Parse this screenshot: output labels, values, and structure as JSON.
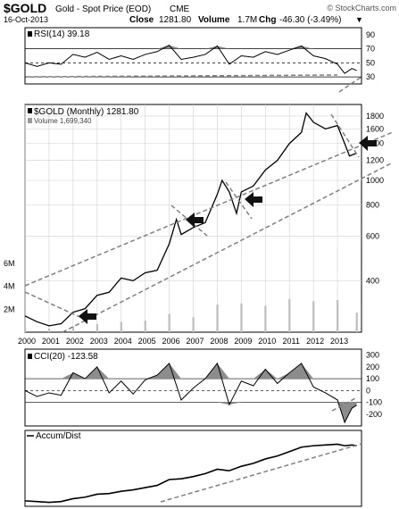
{
  "header": {
    "symbol": "$GOLD",
    "name": "Gold - Spot Price (EOD)",
    "exchange": "CME",
    "date": "16-Oct-2013",
    "close_label": "Close",
    "close_value": "1281.80",
    "volume_label": "Volume",
    "volume_value": "1.7M",
    "chg_label": "Chg",
    "chg_value": "-46.30 (-3.49%)",
    "chg_arrow": "▼",
    "watermark": "© StockCharts.com"
  },
  "colors": {
    "price": "#000000",
    "fill_gray": "#8c8c8c",
    "volume_bar": "#bdbdbd",
    "trend_dash": "#808080",
    "grid": "#d0d0d0",
    "arrow": "#111111"
  },
  "chart_data": [
    {
      "type": "line",
      "panel": "rsi",
      "legend": "RSI(14) 39.18",
      "y_ticks": [
        30,
        50,
        70,
        90
      ],
      "ylim": [
        20,
        100
      ],
      "reference_lines": [
        30,
        50,
        70
      ],
      "fill_above": 70,
      "x": [
        2000.0,
        2000.5,
        2001.0,
        2001.5,
        2002.0,
        2002.5,
        2003.0,
        2003.5,
        2004.0,
        2004.5,
        2005.0,
        2005.5,
        2006.0,
        2006.5,
        2007.0,
        2007.5,
        2008.0,
        2008.5,
        2009.0,
        2009.5,
        2010.0,
        2010.5,
        2011.0,
        2011.5,
        2012.0,
        2012.5,
        2013.0,
        2013.3,
        2013.6,
        2013.8
      ],
      "values": [
        50,
        45,
        50,
        48,
        62,
        58,
        65,
        55,
        60,
        55,
        62,
        66,
        75,
        55,
        58,
        62,
        74,
        48,
        60,
        58,
        66,
        62,
        68,
        74,
        60,
        56,
        48,
        35,
        42,
        39
      ]
    },
    {
      "type": "line",
      "panel": "price",
      "legend": "$GOLD (Monthly) 1281.80",
      "volume_legend": "Volume 1,699,340",
      "scale": "log",
      "y_ticks": [
        400,
        600,
        800,
        1000,
        1200,
        1400,
        1600,
        1800
      ],
      "ylim": [
        250,
        2000
      ],
      "x_ticks": [
        "2000",
        "2001",
        "2002",
        "2003",
        "2004",
        "2005",
        "2006",
        "2007",
        "2008",
        "2009",
        "2010",
        "2011",
        "2012",
        "2013"
      ],
      "volume_ticks": [
        "2M",
        "4M",
        "6M"
      ],
      "volume_ylim": [
        0,
        7000000
      ],
      "x": [
        2000.0,
        2000.5,
        2001.0,
        2001.5,
        2002.0,
        2002.5,
        2003.0,
        2003.5,
        2004.0,
        2004.5,
        2005.0,
        2005.5,
        2006.0,
        2006.3,
        2006.5,
        2007.0,
        2007.5,
        2008.0,
        2008.2,
        2008.5,
        2008.8,
        2009.0,
        2009.5,
        2010.0,
        2010.5,
        2011.0,
        2011.5,
        2011.7,
        2012.0,
        2012.5,
        2013.0,
        2013.3,
        2013.5,
        2013.8
      ],
      "values": [
        290,
        275,
        265,
        270,
        300,
        310,
        350,
        360,
        410,
        400,
        430,
        440,
        560,
        700,
        610,
        650,
        680,
        880,
        1000,
        900,
        740,
        900,
        950,
        1100,
        1200,
        1400,
        1550,
        1850,
        1700,
        1600,
        1650,
        1400,
        1250,
        1282
      ],
      "volume_x": [
        2000.0,
        2001.0,
        2002.0,
        2003.0,
        2004.0,
        2005.0,
        2006.0,
        2007.0,
        2008.0,
        2009.0,
        2010.0,
        2011.0,
        2012.0,
        2013.0,
        2013.8
      ],
      "volume_values": [
        400000,
        300000,
        500000,
        700000,
        900000,
        1000000,
        1600000,
        1300000,
        2400000,
        2500000,
        2300000,
        2900000,
        2700000,
        2800000,
        1700000
      ]
    },
    {
      "type": "line",
      "panel": "cci",
      "legend": "CCI(20) -123.58",
      "y_ticks": [
        -200,
        -100,
        0,
        100,
        200,
        300
      ],
      "ylim": [
        -300,
        350
      ],
      "reference_lines": [
        -100,
        0,
        100
      ],
      "x": [
        2000.0,
        2000.5,
        2001.0,
        2001.5,
        2002.0,
        2002.5,
        2003.0,
        2003.5,
        2004.0,
        2004.5,
        2005.0,
        2005.5,
        2006.0,
        2006.5,
        2007.0,
        2007.5,
        2008.0,
        2008.5,
        2009.0,
        2009.5,
        2010.0,
        2010.5,
        2011.0,
        2011.5,
        2012.0,
        2012.5,
        2013.0,
        2013.3,
        2013.6,
        2013.8
      ],
      "values": [
        0,
        -50,
        -20,
        -40,
        150,
        100,
        200,
        -20,
        80,
        -30,
        90,
        130,
        230,
        -80,
        20,
        100,
        230,
        -120,
        80,
        40,
        180,
        60,
        150,
        230,
        30,
        -20,
        -80,
        -270,
        -150,
        -124
      ]
    },
    {
      "type": "line",
      "panel": "accum_dist",
      "legend": "Accum/Dist",
      "x": [
        2000.0,
        2000.5,
        2001.0,
        2001.5,
        2002.0,
        2002.5,
        2003.0,
        2003.5,
        2004.0,
        2004.5,
        2005.0,
        2005.5,
        2006.0,
        2006.5,
        2007.0,
        2007.5,
        2008.0,
        2008.5,
        2009.0,
        2009.5,
        2010.0,
        2010.5,
        2011.0,
        2011.5,
        2012.0,
        2012.5,
        2013.0,
        2013.3,
        2013.6,
        2013.8
      ],
      "values": [
        5,
        4,
        3,
        4,
        8,
        10,
        14,
        15,
        18,
        20,
        23,
        26,
        34,
        35,
        38,
        42,
        48,
        46,
        52,
        56,
        62,
        66,
        72,
        78,
        80,
        81,
        82,
        80,
        81,
        80
      ]
    }
  ]
}
